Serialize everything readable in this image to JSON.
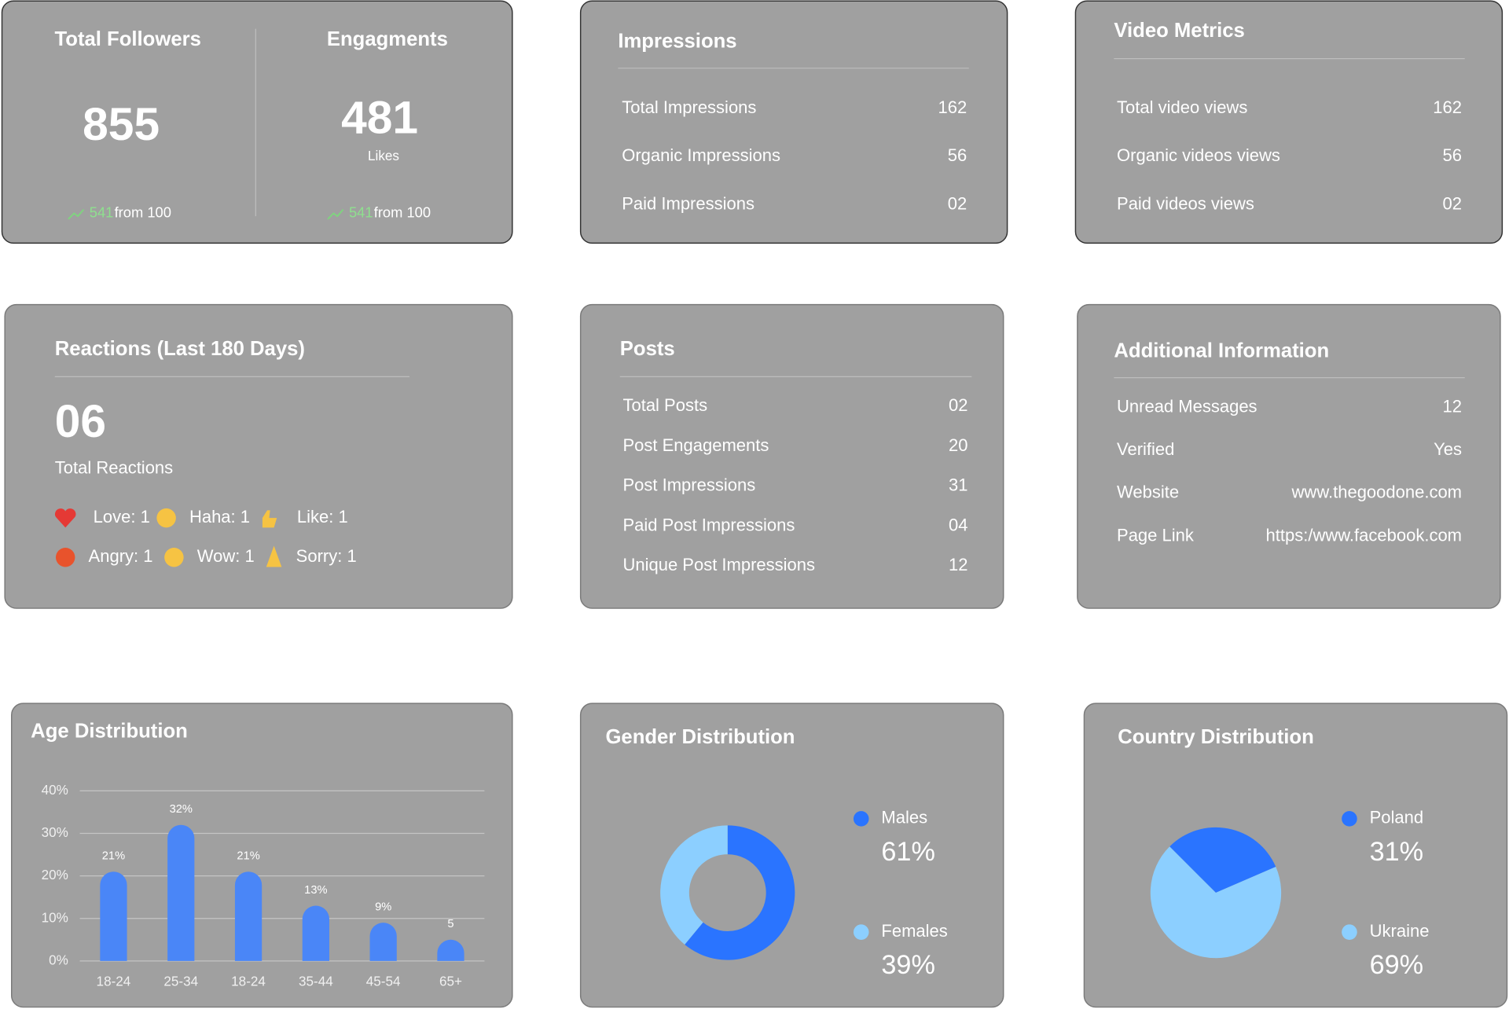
{
  "followers": {
    "title": "Total Followers",
    "value": "855",
    "trend_value": "541",
    "trend_text": "from 100"
  },
  "engagements": {
    "title": "Engagments",
    "value": "481",
    "unit": "Likes",
    "trend_value": "541",
    "trend_text": "from 100"
  },
  "impressions": {
    "title": "Impressions",
    "rows": [
      [
        "Total Impressions",
        "162"
      ],
      [
        "Organic Impressions",
        "56"
      ],
      [
        "Paid Impressions",
        "02"
      ]
    ]
  },
  "video_metrics": {
    "title": "Video Metrics",
    "rows": [
      [
        "Total video views",
        "162"
      ],
      [
        "Organic videos views",
        "56"
      ],
      [
        "Paid videos views",
        "02"
      ]
    ]
  },
  "reactions": {
    "title": "Reactions (Last 180 Days)",
    "value": "06",
    "label": "Total Reactions",
    "items": [
      "Love: 1",
      "Haha: 1",
      "Like: 1",
      "Angry: 1",
      "Wow: 1",
      "Sorry: 1"
    ]
  },
  "posts": {
    "title": "Posts",
    "rows": [
      [
        "Total Posts",
        "02"
      ],
      [
        "Post Engagements",
        "20"
      ],
      [
        "Post Impressions",
        "31"
      ],
      [
        "Paid Post Impressions",
        "04"
      ],
      [
        "Unique Post Impressions",
        "12"
      ]
    ]
  },
  "additional_information": {
    "title": "Additional Information",
    "rows": [
      [
        "Unread Messages",
        "12"
      ],
      [
        "Verified",
        "Yes"
      ],
      [
        "Website",
        "www.thegoodone.com"
      ],
      [
        "Page Link",
        "https:/www.facebook.com"
      ]
    ]
  },
  "chart_data": [
    {
      "type": "bar",
      "title": "Age Distribution",
      "categories": [
        "18-24",
        "25-34",
        "18-24",
        "35-44",
        "45-54",
        "65+"
      ],
      "values": [
        21,
        32,
        21,
        13,
        9,
        5
      ],
      "value_labels": [
        "21%",
        "32%",
        "21%",
        "13%",
        "9%",
        "5"
      ],
      "color": "#4a86f7",
      "ylim": [
        0,
        40
      ],
      "yticks": [
        {
          "value": 0,
          "label": "0%"
        },
        {
          "value": 10,
          "label": "10%"
        },
        {
          "value": 20,
          "label": "20%"
        },
        {
          "value": 30,
          "label": "30%"
        },
        {
          "value": 40,
          "label": "40%"
        }
      ],
      "grid": true
    },
    {
      "type": "donut",
      "title": "Gender Distribution",
      "categories": [
        "Males",
        "Females"
      ],
      "values": [
        61,
        39
      ],
      "value_labels": [
        "61%",
        "39%"
      ],
      "colors": [
        "#2a74ff",
        "#8ccfff"
      ]
    },
    {
      "type": "pie",
      "title": "Country Distribution",
      "categories": [
        "Poland",
        "Ukraine"
      ],
      "values": [
        31,
        69
      ],
      "value_labels": [
        "31%",
        "69%"
      ],
      "colors": [
        "#2a74ff",
        "#8ccfff"
      ]
    }
  ]
}
